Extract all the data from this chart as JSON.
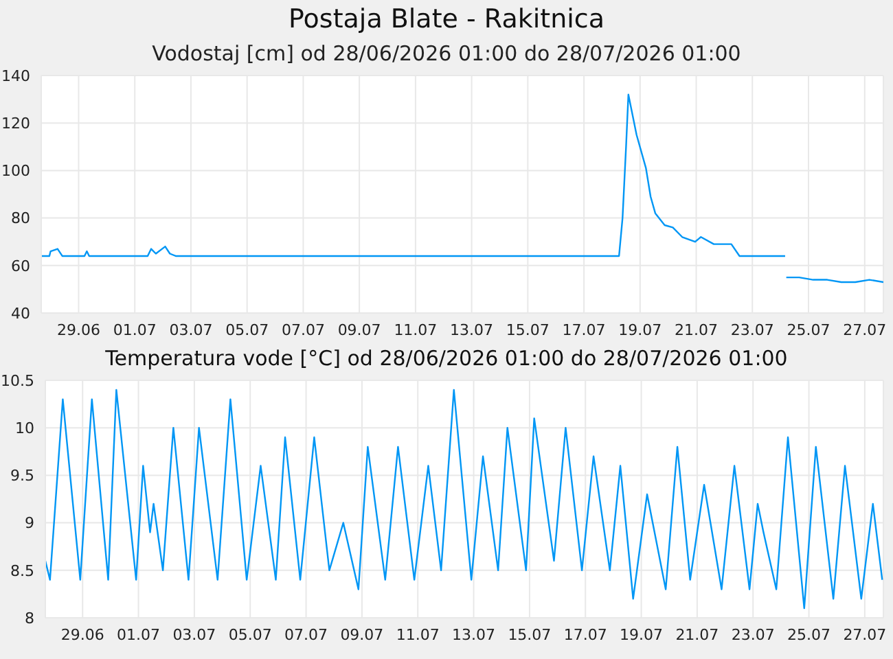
{
  "chart_data": [
    {
      "type": "line",
      "title": "Postaja Blate - Rakitnica",
      "subtitle": "Vodostaj [cm] od 28/06/2026 01:00 do 28/07/2026 01:00",
      "xlim": [
        "2026-06-28T01:00",
        "2026-07-28T01:00"
      ],
      "xticks": [
        {
          "value": "2026-06-29T09:00",
          "label": "29.06"
        },
        {
          "value": "2026-07-01T09:00",
          "label": "01.07"
        },
        {
          "value": "2026-07-03T09:00",
          "label": "03.07"
        },
        {
          "value": "2026-07-05T09:00",
          "label": "05.07"
        },
        {
          "value": "2026-07-07T09:00",
          "label": "07.07"
        },
        {
          "value": "2026-07-09T09:00",
          "label": "09.07"
        },
        {
          "value": "2026-07-11T09:00",
          "label": "11.07"
        },
        {
          "value": "2026-07-13T09:00",
          "label": "13.07"
        },
        {
          "value": "2026-07-15T09:00",
          "label": "15.07"
        },
        {
          "value": "2026-07-17T09:00",
          "label": "17.07"
        },
        {
          "value": "2026-07-19T09:00",
          "label": "19.07"
        },
        {
          "value": "2026-07-21T09:00",
          "label": "21.07"
        },
        {
          "value": "2026-07-23T09:00",
          "label": "23.07"
        },
        {
          "value": "2026-07-25T09:00",
          "label": "25.07"
        },
        {
          "value": "2026-07-27T09:00",
          "label": "27.07"
        }
      ],
      "ylim": [
        40,
        140
      ],
      "yticks": [
        40,
        60,
        80,
        100,
        120,
        140
      ],
      "grid": true,
      "series": [
        {
          "color": "#0096f5",
          "x": [
            "2026-06-28T01:00",
            "2026-06-28T08:00",
            "2026-06-28T09:00",
            "2026-06-28T15:00",
            "2026-06-28T19:00",
            "2026-06-29T14:00",
            "2026-06-29T16:00",
            "2026-06-29T18:00",
            "2026-07-01T20:00",
            "2026-07-01T23:00",
            "2026-07-02T03:00",
            "2026-07-02T11:00",
            "2026-07-02T15:00",
            "2026-07-02T20:00",
            "2026-07-18T15:00",
            "2026-07-18T18:00",
            "2026-07-18T21:00",
            "2026-07-18T23:00",
            "2026-07-19T06:00",
            "2026-07-19T14:00",
            "2026-07-19T18:00",
            "2026-07-19T22:00",
            "2026-07-20T06:00",
            "2026-07-20T13:00",
            "2026-07-20T21:00",
            "2026-07-21T08:00",
            "2026-07-21T13:00",
            "2026-07-22T00:00",
            "2026-07-22T15:00",
            "2026-07-22T22:00",
            "2026-07-24T13:00",
            "2026-07-24T13:30",
            "2026-07-24T14:00",
            "2026-07-25T01:00",
            "2026-07-25T13:00",
            "2026-07-26T01:00",
            "2026-07-26T13:00",
            "2026-07-27T01:00",
            "2026-07-27T13:00",
            "2026-07-28T01:00"
          ],
          "values": [
            64,
            64,
            66,
            67,
            64,
            64,
            66,
            64,
            64,
            67,
            65,
            68,
            65,
            64,
            64,
            80,
            110,
            132,
            115,
            101,
            89,
            82,
            77,
            76,
            72,
            70,
            72,
            69,
            69,
            64,
            64,
            null,
            55,
            55,
            54,
            54,
            53,
            53,
            54,
            53
          ]
        }
      ]
    },
    {
      "type": "line",
      "title": "Temperatura vode [°C] od 28/06/2026 01:00 do 28/07/2026 01:00",
      "xlim": [
        "2026-06-28T01:00",
        "2026-07-28T01:00"
      ],
      "xticks": [
        {
          "value": "2026-06-29T09:00",
          "label": "29.06"
        },
        {
          "value": "2026-07-01T09:00",
          "label": "01.07"
        },
        {
          "value": "2026-07-03T09:00",
          "label": "03.07"
        },
        {
          "value": "2026-07-05T09:00",
          "label": "05.07"
        },
        {
          "value": "2026-07-07T09:00",
          "label": "07.07"
        },
        {
          "value": "2026-07-09T09:00",
          "label": "09.07"
        },
        {
          "value": "2026-07-11T09:00",
          "label": "11.07"
        },
        {
          "value": "2026-07-13T09:00",
          "label": "13.07"
        },
        {
          "value": "2026-07-15T09:00",
          "label": "15.07"
        },
        {
          "value": "2026-07-17T09:00",
          "label": "17.07"
        },
        {
          "value": "2026-07-19T09:00",
          "label": "19.07"
        },
        {
          "value": "2026-07-21T09:00",
          "label": "21.07"
        },
        {
          "value": "2026-07-23T09:00",
          "label": "23.07"
        },
        {
          "value": "2026-07-25T09:00",
          "label": "25.07"
        },
        {
          "value": "2026-07-27T09:00",
          "label": "27.07"
        }
      ],
      "ylim": [
        8,
        10.5
      ],
      "yticks": [
        8,
        8.5,
        9,
        9.5,
        10,
        10.5
      ],
      "grid": true,
      "series": [
        {
          "color": "#0096f5",
          "x": [
            "2026-06-28T01:00",
            "2026-06-28T05:00",
            "2026-06-28T16:00",
            "2026-06-29T07:00",
            "2026-06-29T17:00",
            "2026-06-30T07:00",
            "2026-06-30T14:00",
            "2026-07-01T07:00",
            "2026-07-01T13:00",
            "2026-07-01T19:00",
            "2026-07-01T22:00",
            "2026-07-02T06:00",
            "2026-07-02T15:00",
            "2026-07-03T04:00",
            "2026-07-03T13:00",
            "2026-07-04T05:00",
            "2026-07-04T16:00",
            "2026-07-05T06:00",
            "2026-07-05T18:00",
            "2026-07-06T07:00",
            "2026-07-06T15:00",
            "2026-07-07T04:00",
            "2026-07-07T16:00",
            "2026-07-08T05:00",
            "2026-07-08T17:00",
            "2026-07-09T06:00",
            "2026-07-09T14:00",
            "2026-07-10T05:00",
            "2026-07-10T16:00",
            "2026-07-11T06:00",
            "2026-07-11T18:00",
            "2026-07-12T05:00",
            "2026-07-12T16:00",
            "2026-07-13T07:00",
            "2026-07-13T17:00",
            "2026-07-14T06:00",
            "2026-07-14T14:00",
            "2026-07-15T06:00",
            "2026-07-15T13:00",
            "2026-07-16T06:00",
            "2026-07-16T16:00",
            "2026-07-17T06:00",
            "2026-07-17T16:00",
            "2026-07-18T06:00",
            "2026-07-18T15:00",
            "2026-07-19T02:00",
            "2026-07-19T14:00",
            "2026-07-20T06:00",
            "2026-07-20T16:00",
            "2026-07-21T03:00",
            "2026-07-21T15:00",
            "2026-07-22T06:00",
            "2026-07-22T17:00",
            "2026-07-23T06:00",
            "2026-07-23T13:00",
            "2026-07-23T18:00",
            "2026-07-24T05:00",
            "2026-07-24T15:00",
            "2026-07-25T05:00",
            "2026-07-25T15:00",
            "2026-07-26T06:00",
            "2026-07-26T16:00",
            "2026-07-27T06:00",
            "2026-07-27T16:00",
            "2026-07-28T00:00"
          ],
          "values": [
            8.6,
            8.4,
            10.3,
            8.4,
            10.3,
            8.4,
            10.4,
            8.4,
            9.6,
            8.9,
            9.2,
            8.5,
            10,
            8.4,
            10,
            8.4,
            10.3,
            8.4,
            9.6,
            8.4,
            9.9,
            8.4,
            9.9,
            8.5,
            9,
            8.3,
            9.8,
            8.4,
            9.8,
            8.4,
            9.6,
            8.5,
            10.4,
            8.4,
            9.7,
            8.5,
            10,
            8.5,
            10.1,
            8.6,
            10,
            8.5,
            9.7,
            8.5,
            9.6,
            8.2,
            9.3,
            8.3,
            9.8,
            8.4,
            9.4,
            8.3,
            9.6,
            8.3,
            9.2,
            8.9,
            8.3,
            9.9,
            8.1,
            9.8,
            8.2,
            9.6,
            8.2,
            9.2,
            8.4
          ]
        }
      ]
    }
  ]
}
